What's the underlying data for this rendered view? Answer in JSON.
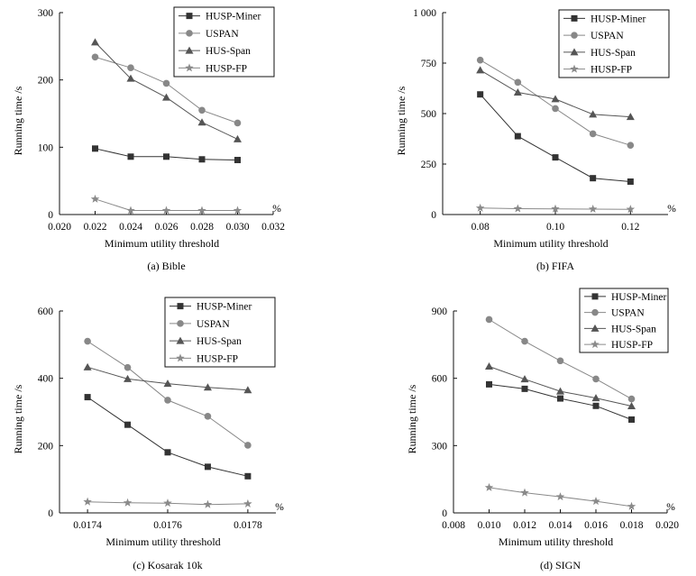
{
  "figure": {
    "colors": {
      "axis": "#111111",
      "miner": "#333333",
      "uspan": "#888888",
      "husspan": "#555555",
      "fp": "#8a8a8a"
    }
  },
  "chart_data": [
    {
      "type": "line",
      "caption": "(a) Bible",
      "xlabel": "Minimum utility threshold",
      "ylabel": "Running time /s",
      "xunit": "%",
      "xlim": [
        0.02,
        0.032
      ],
      "ylim": [
        0,
        300
      ],
      "xticks": [
        "0.020",
        "0.022",
        "0.024",
        "0.026",
        "0.028",
        "0.030",
        "0.032"
      ],
      "yticks": [
        "0",
        "100",
        "200",
        "300"
      ],
      "legend_position": "top-right",
      "grid": false,
      "x": [
        0.022,
        0.024,
        0.026,
        0.028,
        0.03
      ],
      "series": [
        {
          "name": "HUSP-Miner",
          "marker": "square",
          "values": [
            98,
            86,
            86,
            82,
            81
          ]
        },
        {
          "name": "USPAN",
          "marker": "circle",
          "values": [
            234,
            218,
            195,
            155,
            136
          ]
        },
        {
          "name": "HUS-Span",
          "marker": "triangle",
          "values": [
            256,
            202,
            174,
            137,
            112
          ]
        },
        {
          "name": "HUSP-FP",
          "marker": "star",
          "values": [
            23,
            6,
            6,
            6,
            6
          ]
        }
      ]
    },
    {
      "type": "line",
      "caption": "(b) FIFA",
      "xlabel": "Minimum utility threshold",
      "ylabel": "Running time /s",
      "xunit": "%",
      "xlim": [
        0.07,
        0.13
      ],
      "ylim": [
        0,
        1000
      ],
      "xticks": [
        "0.08",
        "0.10",
        "0.12"
      ],
      "yticks": [
        "0",
        "250",
        "500",
        "750",
        "1 000"
      ],
      "legend_position": "top-right",
      "grid": false,
      "x": [
        0.08,
        0.09,
        0.1,
        0.11,
        0.12
      ],
      "series": [
        {
          "name": "HUSP-Miner",
          "marker": "square",
          "values": [
            595,
            388,
            283,
            180,
            163
          ]
        },
        {
          "name": "USPAN",
          "marker": "circle",
          "values": [
            765,
            655,
            525,
            400,
            343
          ]
        },
        {
          "name": "HUS-Span",
          "marker": "triangle",
          "values": [
            715,
            605,
            572,
            496,
            484
          ]
        },
        {
          "name": "HUSP-FP",
          "marker": "star",
          "values": [
            32,
            29,
            28,
            27,
            26
          ]
        }
      ]
    },
    {
      "type": "line",
      "caption": "(c) Kosarak 10k",
      "xlabel": "Minimum utility threshold",
      "ylabel": "Running time /s",
      "xunit": "%",
      "xlim": [
        0.01733,
        0.01787
      ],
      "ylim": [
        0,
        600
      ],
      "xticks": [
        "0.0174",
        "0.0176",
        "0.0178"
      ],
      "yticks": [
        "0",
        "200",
        "400",
        "600"
      ],
      "legend_position": "top-right",
      "grid": false,
      "x": [
        0.0174,
        0.0175,
        0.0176,
        0.0177,
        0.0178
      ],
      "series": [
        {
          "name": "HUSP-Miner",
          "marker": "square",
          "values": [
            344,
            262,
            180,
            137,
            109
          ]
        },
        {
          "name": "USPAN",
          "marker": "circle",
          "values": [
            510,
            432,
            335,
            287,
            201
          ]
        },
        {
          "name": "HUS-Span",
          "marker": "triangle",
          "values": [
            433,
            398,
            384,
            373,
            365
          ]
        },
        {
          "name": "HUSP-FP",
          "marker": "star",
          "values": [
            33,
            30,
            29,
            25,
            27
          ]
        }
      ]
    },
    {
      "type": "line",
      "caption": "(d) SIGN",
      "xlabel": "Minimum utility threshold",
      "ylabel": "Running time /s",
      "xunit": "%",
      "xlim": [
        0.008,
        0.02
      ],
      "ylim": [
        0,
        900
      ],
      "xticks": [
        "0.008",
        "0.010",
        "0.012",
        "0.014",
        "0.016",
        "0.018",
        "0.020"
      ],
      "yticks": [
        "0",
        "300",
        "600",
        "900"
      ],
      "legend_position": "top-right",
      "grid": false,
      "x": [
        0.01,
        0.012,
        0.014,
        0.016,
        0.018
      ],
      "series": [
        {
          "name": "HUSP-Miner",
          "marker": "square",
          "values": [
            573,
            553,
            510,
            477,
            416
          ]
        },
        {
          "name": "USPAN",
          "marker": "circle",
          "values": [
            862,
            765,
            678,
            597,
            508
          ]
        },
        {
          "name": "HUS-Span",
          "marker": "triangle",
          "values": [
            653,
            596,
            542,
            512,
            476
          ]
        },
        {
          "name": "HUSP-FP",
          "marker": "star",
          "values": [
            113,
            90,
            72,
            52,
            29
          ]
        }
      ]
    }
  ]
}
